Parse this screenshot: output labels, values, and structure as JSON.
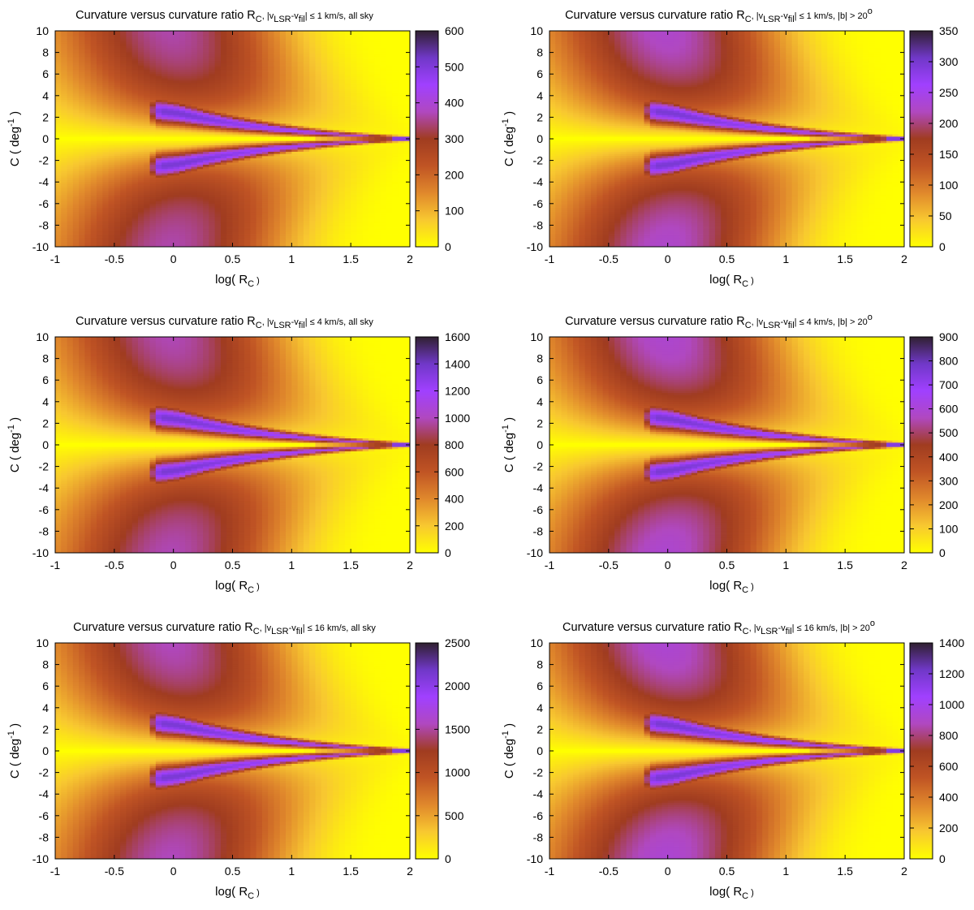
{
  "figure": {
    "layout": "3x2 grid of heatmap panels"
  },
  "colormap": {
    "stops": [
      "#ffff00",
      "#f8c830",
      "#e0882c",
      "#c05424",
      "#a03c20",
      "#b048c0",
      "#a040ff",
      "#7038c8",
      "#302030"
    ],
    "band_color": "#ffff00"
  },
  "chart_data": [
    {
      "type": "heatmap",
      "title_parts": {
        "pre": "Curvature versus curvature ratio R",
        "sub1": "C",
        "mid": ", |v",
        "sub2": "LSR",
        "mid2": "-v",
        "sub3": "fil",
        "post": "| ≤ 1 km/s, all sky",
        "sup": ""
      },
      "xlabel_parts": {
        "pre": "log( R",
        "sub": "C",
        "post": " )"
      },
      "ylabel_parts": {
        "pre": "C ( deg",
        "sup": "-1",
        "post": " )"
      },
      "xlim": [
        -1,
        2
      ],
      "ylim": [
        -10,
        10
      ],
      "xticks": [
        "-1",
        "-0.5",
        "0",
        "0.5",
        "1",
        "1.5",
        "2"
      ],
      "yticks": [
        "-10",
        "-8",
        "-6",
        "-4",
        "-2",
        "0",
        "2",
        "4",
        "6",
        "8",
        "10"
      ],
      "colorbar": {
        "min": 0,
        "max": 600,
        "ticks": [
          "0",
          "100",
          "200",
          "300",
          "400",
          "500",
          "600"
        ]
      },
      "grid": false
    },
    {
      "type": "heatmap",
      "title_parts": {
        "pre": "Curvature versus curvature ratio R",
        "sub1": "C",
        "mid": ", |v",
        "sub2": "LSR",
        "mid2": "-v",
        "sub3": "fil",
        "post": "| ≤ 1 km/s, |b| > 20",
        "sup": "o"
      },
      "xlabel_parts": {
        "pre": "log( R",
        "sub": "C",
        "post": " )"
      },
      "ylabel_parts": {
        "pre": "C ( deg",
        "sup": "-1",
        "post": " )"
      },
      "xlim": [
        -1,
        2
      ],
      "ylim": [
        -10,
        10
      ],
      "xticks": [
        "-1",
        "-0.5",
        "0",
        "0.5",
        "1",
        "1.5",
        "2"
      ],
      "yticks": [
        "-10",
        "-8",
        "-6",
        "-4",
        "-2",
        "0",
        "2",
        "4",
        "6",
        "8",
        "10"
      ],
      "colorbar": {
        "min": 0,
        "max": 350,
        "ticks": [
          "0",
          "50",
          "100",
          "150",
          "200",
          "250",
          "300",
          "350"
        ]
      },
      "grid": false
    },
    {
      "type": "heatmap",
      "title_parts": {
        "pre": "Curvature versus curvature ratio R",
        "sub1": "C",
        "mid": ", |v",
        "sub2": "LSR",
        "mid2": "-v",
        "sub3": "fil",
        "post": "| ≤ 4 km/s, all sky",
        "sup": ""
      },
      "xlabel_parts": {
        "pre": "log( R",
        "sub": "C",
        "post": " )"
      },
      "ylabel_parts": {
        "pre": "C ( deg",
        "sup": "-1",
        "post": " )"
      },
      "xlim": [
        -1,
        2
      ],
      "ylim": [
        -10,
        10
      ],
      "xticks": [
        "-1",
        "-0.5",
        "0",
        "0.5",
        "1",
        "1.5",
        "2"
      ],
      "yticks": [
        "-10",
        "-8",
        "-6",
        "-4",
        "-2",
        "0",
        "2",
        "4",
        "6",
        "8",
        "10"
      ],
      "colorbar": {
        "min": 0,
        "max": 1600,
        "ticks": [
          "0",
          "200",
          "400",
          "600",
          "800",
          "1000",
          "1200",
          "1400",
          "1600"
        ]
      },
      "grid": false
    },
    {
      "type": "heatmap",
      "title_parts": {
        "pre": "Curvature versus curvature ratio R",
        "sub1": "C",
        "mid": ", |v",
        "sub2": "LSR",
        "mid2": "-v",
        "sub3": "fil",
        "post": "| ≤ 4 km/s, |b| > 20",
        "sup": "o"
      },
      "xlabel_parts": {
        "pre": "log( R",
        "sub": "C",
        "post": " )"
      },
      "ylabel_parts": {
        "pre": "C ( deg",
        "sup": "-1",
        "post": " )"
      },
      "xlim": [
        -1,
        2
      ],
      "ylim": [
        -10,
        10
      ],
      "xticks": [
        "-1",
        "-0.5",
        "0",
        "0.5",
        "1",
        "1.5",
        "2"
      ],
      "yticks": [
        "-10",
        "-8",
        "-6",
        "-4",
        "-2",
        "0",
        "2",
        "4",
        "6",
        "8",
        "10"
      ],
      "colorbar": {
        "min": 0,
        "max": 900,
        "ticks": [
          "0",
          "100",
          "200",
          "300",
          "400",
          "500",
          "600",
          "700",
          "800",
          "900"
        ]
      },
      "grid": false
    },
    {
      "type": "heatmap",
      "title_parts": {
        "pre": "Curvature versus curvature ratio R",
        "sub1": "C",
        "mid": ", |v",
        "sub2": "LSR",
        "mid2": "-v",
        "sub3": "fil",
        "post": "| ≤ 16 km/s, all sky",
        "sup": ""
      },
      "xlabel_parts": {
        "pre": "log( R",
        "sub": "C",
        "post": " )"
      },
      "ylabel_parts": {
        "pre": "C ( deg",
        "sup": "-1",
        "post": " )"
      },
      "xlim": [
        -1,
        2
      ],
      "ylim": [
        -10,
        10
      ],
      "xticks": [
        "-1",
        "-0.5",
        "0",
        "0.5",
        "1",
        "1.5",
        "2"
      ],
      "yticks": [
        "-10",
        "-8",
        "-6",
        "-4",
        "-2",
        "0",
        "2",
        "4",
        "6",
        "8",
        "10"
      ],
      "colorbar": {
        "min": 0,
        "max": 2500,
        "ticks": [
          "0",
          "500",
          "1000",
          "1500",
          "2000",
          "2500"
        ]
      },
      "grid": false
    },
    {
      "type": "heatmap",
      "title_parts": {
        "pre": "Curvature versus curvature ratio R",
        "sub1": "C",
        "mid": ", |v",
        "sub2": "LSR",
        "mid2": "-v",
        "sub3": "fil",
        "post": "| ≤ 16 km/s, |b| > 20",
        "sup": "o"
      },
      "xlabel_parts": {
        "pre": "log( R",
        "sub": "C",
        "post": " )"
      },
      "ylabel_parts": {
        "pre": "C ( deg",
        "sup": "-1",
        "post": " )"
      },
      "xlim": [
        -1,
        2
      ],
      "ylim": [
        -10,
        10
      ],
      "xticks": [
        "-1",
        "-0.5",
        "0",
        "0.5",
        "1",
        "1.5",
        "2"
      ],
      "yticks": [
        "-10",
        "-8",
        "-6",
        "-4",
        "-2",
        "0",
        "2",
        "4",
        "6",
        "8",
        "10"
      ],
      "colorbar": {
        "min": 0,
        "max": 1400,
        "ticks": [
          "0",
          "200",
          "400",
          "600",
          "800",
          "1000",
          "1200",
          "1400"
        ]
      },
      "grid": false
    }
  ]
}
